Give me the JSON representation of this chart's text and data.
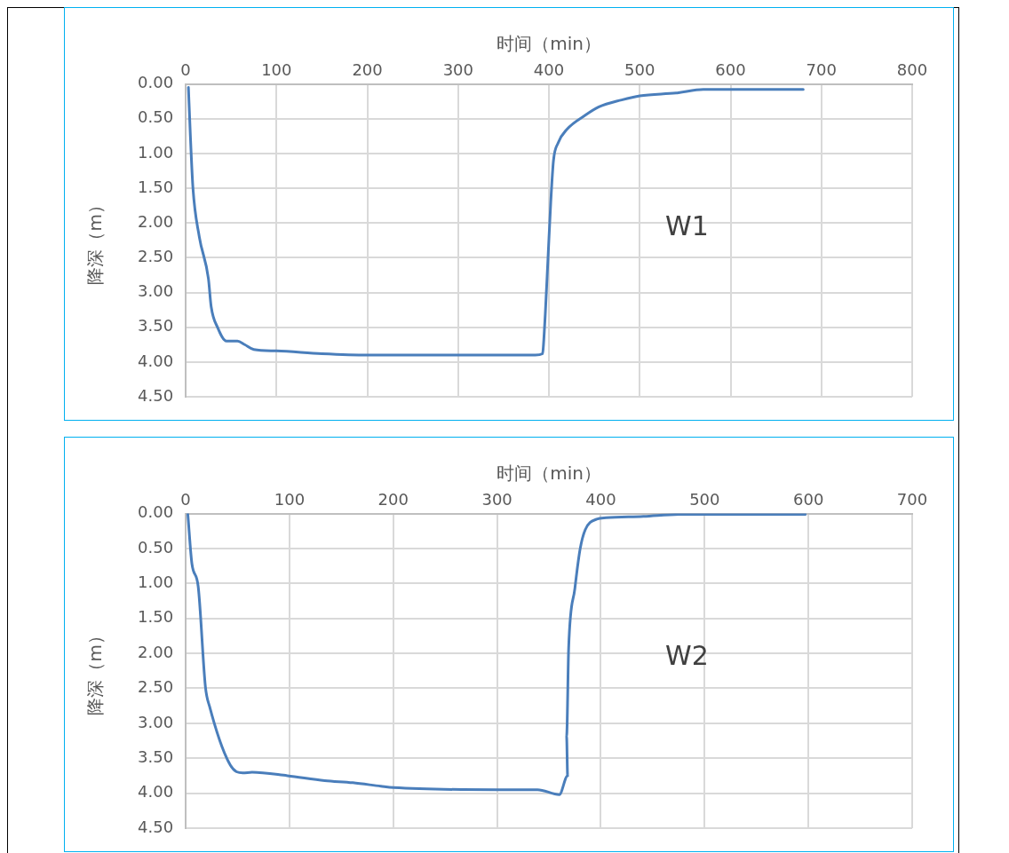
{
  "chart_data": [
    {
      "type": "line",
      "xlabel": "时间（min）",
      "ylabel": "降深（m）",
      "annotations": [
        "W1"
      ],
      "xlim": [
        0,
        800
      ],
      "xticks": [
        0,
        100,
        200,
        300,
        400,
        500,
        600,
        700,
        800
      ],
      "ylim": [
        4.5,
        0
      ],
      "yticks": [
        {
          "value": 0,
          "label": "0.00"
        },
        {
          "value": 0.5,
          "label": "0.50"
        },
        {
          "value": 1,
          "label": "1.00"
        },
        {
          "value": 1.5,
          "label": "1.50"
        },
        {
          "value": 2,
          "label": "2.00"
        },
        {
          "value": 2.5,
          "label": "2.50"
        },
        {
          "value": 3,
          "label": "3.00"
        },
        {
          "value": 3.5,
          "label": "3.50"
        },
        {
          "value": 4,
          "label": "4.00"
        },
        {
          "value": 4.5,
          "label": "4.50"
        }
      ],
      "grid": true,
      "legend": false,
      "marker": "none",
      "line_style": "solid",
      "series": [
        {
          "color": "#4a7ebb",
          "x": [
            3,
            5,
            8,
            15,
            25,
            28,
            35,
            45,
            57,
            65,
            75,
            100,
            150,
            200,
            300,
            350,
            385,
            393,
            394,
            396,
            399,
            402,
            405,
            410,
            420,
            440,
            455,
            480,
            500,
            540,
            570,
            600,
            680
          ],
          "values": [
            0.05,
            0.7,
            1.5,
            2.2,
            2.8,
            3.2,
            3.5,
            3.7,
            3.7,
            3.75,
            3.82,
            3.84,
            3.88,
            3.9,
            3.9,
            3.9,
            3.9,
            3.88,
            3.75,
            3.3,
            2.5,
            1.7,
            1.1,
            0.85,
            0.65,
            0.45,
            0.33,
            0.23,
            0.17,
            0.13,
            0.08,
            0.08,
            0.08
          ]
        }
      ]
    },
    {
      "type": "line",
      "xlabel": "时间（min）",
      "ylabel": "降深（m）",
      "annotations": [
        "W2"
      ],
      "xlim": [
        0,
        700
      ],
      "xticks": [
        0,
        100,
        200,
        300,
        400,
        500,
        600,
        700
      ],
      "ylim": [
        4.5,
        0
      ],
      "yticks": [
        {
          "value": 0,
          "label": "0.00"
        },
        {
          "value": 0.5,
          "label": "0.50"
        },
        {
          "value": 1,
          "label": "1.00"
        },
        {
          "value": 1.5,
          "label": "1.50"
        },
        {
          "value": 2,
          "label": "2.00"
        },
        {
          "value": 2.5,
          "label": "2.50"
        },
        {
          "value": 3,
          "label": "3.00"
        },
        {
          "value": 3.5,
          "label": "3.50"
        },
        {
          "value": 4,
          "label": "4.00"
        },
        {
          "value": 4.5,
          "label": "4.50"
        }
      ],
      "grid": true,
      "legend": false,
      "marker": "none",
      "line_style": "solid",
      "series": [
        {
          "color": "#4a7ebb",
          "x": [
            2,
            6,
            12,
            19,
            23,
            43,
            55,
            64,
            98,
            134,
            161,
            188,
            200,
            300,
            339,
            360,
            368,
            367,
            369,
            375,
            380,
            385,
            396,
            405,
            441,
            477,
            597
          ],
          "values": [
            0,
            0.72,
            1.04,
            2.48,
            2.76,
            3.6,
            3.71,
            3.7,
            3.75,
            3.82,
            3.85,
            3.9,
            3.92,
            3.95,
            3.95,
            4.02,
            3.75,
            3.19,
            1.92,
            1.07,
            0.51,
            0.23,
            0.08,
            0.06,
            0.04,
            0.01,
            0.01
          ]
        }
      ]
    }
  ]
}
